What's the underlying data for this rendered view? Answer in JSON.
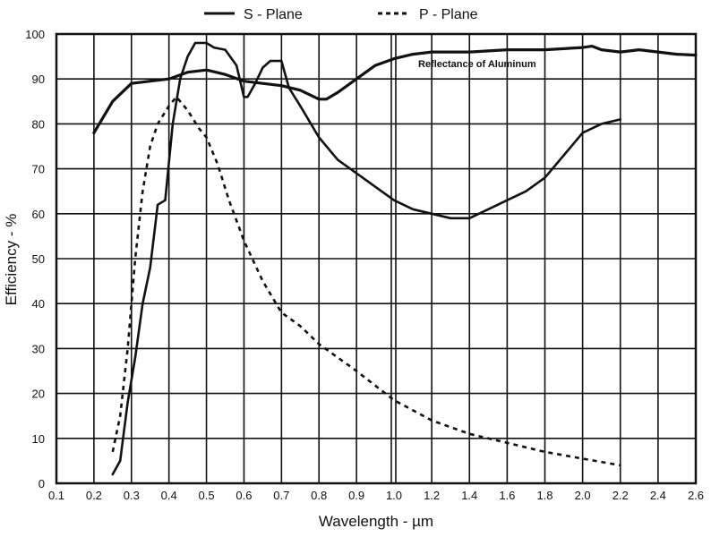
{
  "chart_data": {
    "type": "line",
    "title": "",
    "xlabel": "Wavelength - µm",
    "ylabel": "Efficiency - %",
    "xlim": [
      0.1,
      2.6
    ],
    "ylim": [
      0,
      100
    ],
    "x_scale_note": "0.1 per division up to 1.0, 0.2 per division from 1.0 to 2.6",
    "x_ticks": [
      "0.1",
      "0.2",
      "0.3",
      "0.4",
      "0.5",
      "0.6",
      "0.7",
      "0.8",
      "0.9",
      "1.0",
      "1.2",
      "1.4",
      "1.6",
      "1.8",
      "2.0",
      "2.2",
      "2.4",
      "2.6"
    ],
    "y_ticks": [
      "0",
      "10",
      "20",
      "30",
      "40",
      "50",
      "60",
      "70",
      "80",
      "90",
      "100"
    ],
    "grid": true,
    "legend_position": "top-center",
    "annotation": "Reflectance of Aluminum",
    "series": [
      {
        "name": "S - Plane",
        "style": "solid",
        "points": [
          [
            0.25,
            2
          ],
          [
            0.27,
            5
          ],
          [
            0.29,
            18
          ],
          [
            0.31,
            28
          ],
          [
            0.33,
            40
          ],
          [
            0.35,
            48
          ],
          [
            0.37,
            62
          ],
          [
            0.39,
            63
          ],
          [
            0.41,
            80
          ],
          [
            0.43,
            90
          ],
          [
            0.45,
            95
          ],
          [
            0.47,
            98
          ],
          [
            0.5,
            98
          ],
          [
            0.52,
            97
          ],
          [
            0.55,
            96.5
          ],
          [
            0.58,
            93
          ],
          [
            0.6,
            86
          ],
          [
            0.61,
            86
          ],
          [
            0.63,
            89
          ],
          [
            0.65,
            92.5
          ],
          [
            0.67,
            94
          ],
          [
            0.7,
            94
          ],
          [
            0.72,
            88
          ],
          [
            0.75,
            84
          ],
          [
            0.8,
            77
          ],
          [
            0.85,
            72
          ],
          [
            0.9,
            69
          ],
          [
            0.95,
            66
          ],
          [
            1.0,
            63
          ],
          [
            1.1,
            61
          ],
          [
            1.2,
            60
          ],
          [
            1.3,
            59
          ],
          [
            1.4,
            59
          ],
          [
            1.5,
            61
          ],
          [
            1.6,
            63
          ],
          [
            1.7,
            65
          ],
          [
            1.8,
            68
          ],
          [
            1.9,
            73
          ],
          [
            2.0,
            78
          ],
          [
            2.1,
            80
          ],
          [
            2.2,
            81
          ]
        ]
      },
      {
        "name": "P - Plane",
        "style": "dashed",
        "points": [
          [
            0.25,
            7
          ],
          [
            0.27,
            15
          ],
          [
            0.29,
            30
          ],
          [
            0.31,
            50
          ],
          [
            0.33,
            65
          ],
          [
            0.35,
            75
          ],
          [
            0.37,
            80
          ],
          [
            0.4,
            84
          ],
          [
            0.42,
            86
          ],
          [
            0.45,
            83
          ],
          [
            0.48,
            79
          ],
          [
            0.5,
            77
          ],
          [
            0.53,
            71
          ],
          [
            0.56,
            63
          ],
          [
            0.6,
            54
          ],
          [
            0.65,
            45
          ],
          [
            0.7,
            38
          ],
          [
            0.75,
            35
          ],
          [
            0.8,
            31
          ],
          [
            0.9,
            25
          ],
          [
            1.0,
            18.5
          ],
          [
            1.2,
            14
          ],
          [
            1.4,
            11
          ],
          [
            1.6,
            9
          ],
          [
            1.8,
            7
          ],
          [
            2.0,
            5.5
          ],
          [
            2.2,
            4
          ]
        ]
      },
      {
        "name": "Reflectance of Aluminum",
        "style": "solid-thick",
        "points": [
          [
            0.2,
            78
          ],
          [
            0.25,
            85
          ],
          [
            0.3,
            89
          ],
          [
            0.35,
            89.5
          ],
          [
            0.4,
            90
          ],
          [
            0.45,
            91.5
          ],
          [
            0.5,
            92
          ],
          [
            0.55,
            91
          ],
          [
            0.6,
            89.5
          ],
          [
            0.7,
            88.5
          ],
          [
            0.75,
            87.5
          ],
          [
            0.8,
            85.5
          ],
          [
            0.82,
            85.5
          ],
          [
            0.85,
            87
          ],
          [
            0.9,
            90
          ],
          [
            0.95,
            93
          ],
          [
            1.0,
            94.5
          ],
          [
            1.1,
            95.5
          ],
          [
            1.2,
            96
          ],
          [
            1.4,
            96
          ],
          [
            1.6,
            96.5
          ],
          [
            1.8,
            96.5
          ],
          [
            2.0,
            97
          ],
          [
            2.05,
            97.3
          ],
          [
            2.1,
            96.5
          ],
          [
            2.2,
            96
          ],
          [
            2.3,
            96.5
          ],
          [
            2.4,
            96
          ],
          [
            2.5,
            95.5
          ],
          [
            2.6,
            95.3
          ]
        ]
      }
    ]
  }
}
